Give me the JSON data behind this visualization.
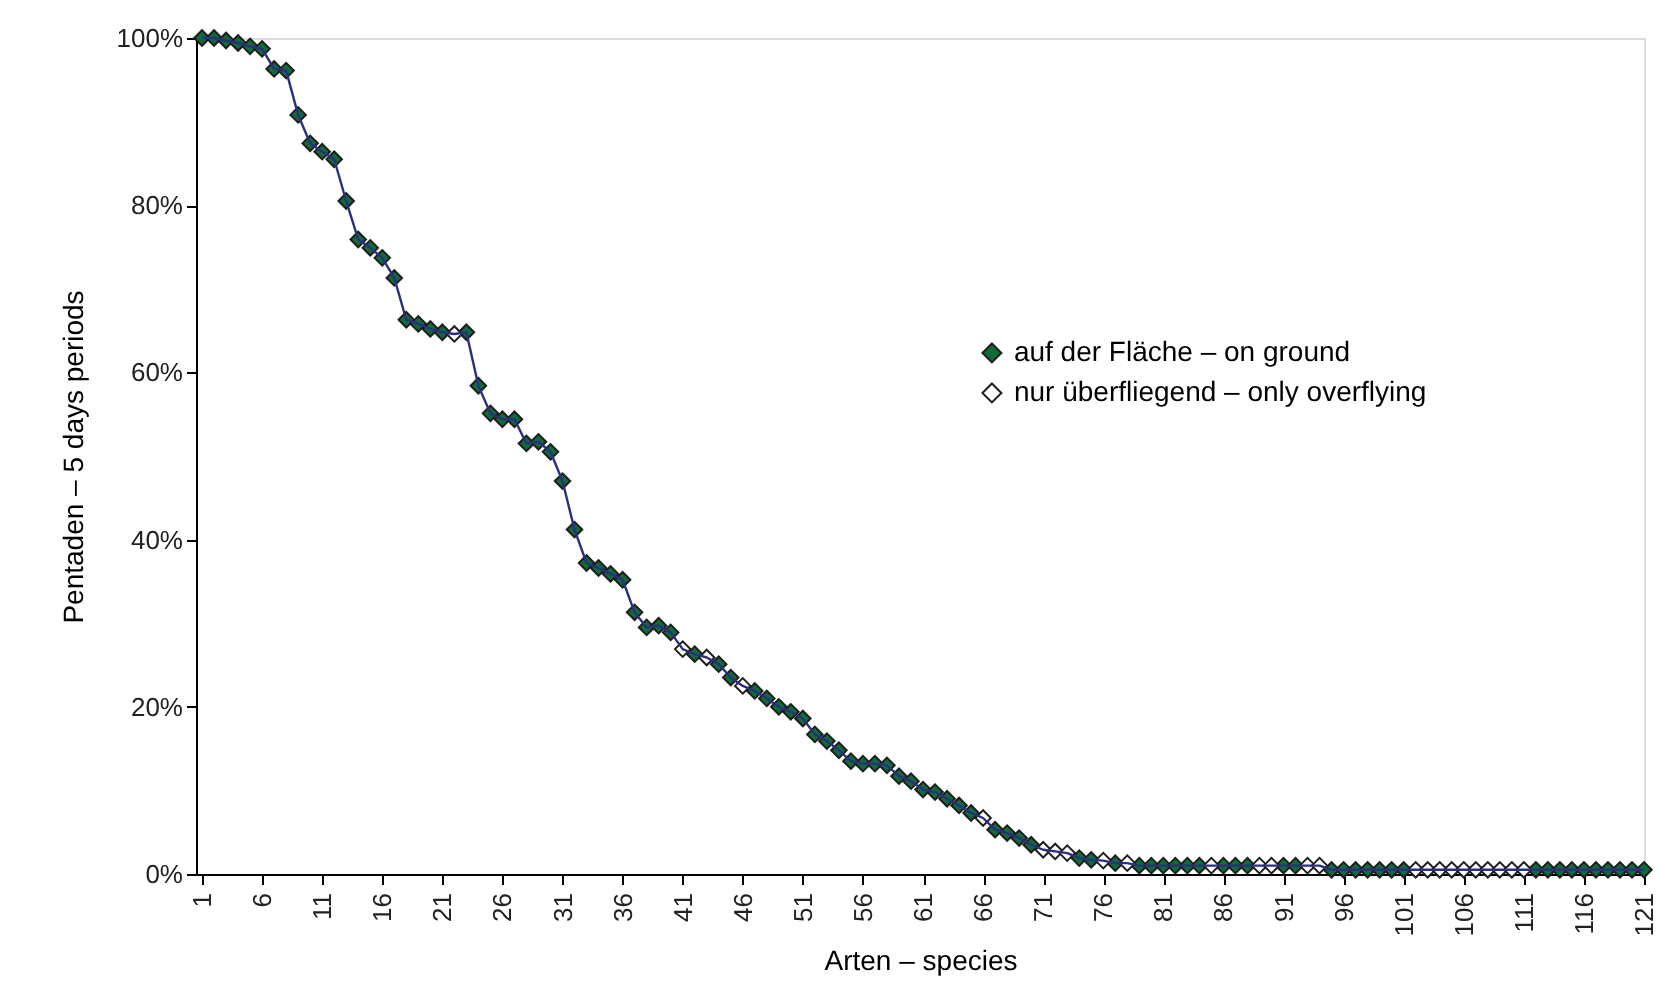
{
  "chart_data": {
    "type": "line",
    "xlabel": "Arten – species",
    "ylabel": "Pentaden – 5 days periods",
    "x": [
      1,
      2,
      3,
      4,
      5,
      6,
      7,
      8,
      9,
      10,
      11,
      12,
      13,
      14,
      15,
      16,
      17,
      18,
      19,
      20,
      21,
      22,
      23,
      24,
      25,
      26,
      27,
      28,
      29,
      30,
      31,
      32,
      33,
      34,
      35,
      36,
      37,
      38,
      39,
      40,
      41,
      42,
      43,
      44,
      45,
      46,
      47,
      48,
      49,
      50,
      51,
      52,
      53,
      54,
      55,
      56,
      57,
      58,
      59,
      60,
      61,
      62,
      63,
      64,
      65,
      66,
      67,
      68,
      69,
      70,
      71,
      72,
      73,
      74,
      75,
      76,
      77,
      78,
      79,
      80,
      81,
      82,
      83,
      84,
      85,
      86,
      87,
      88,
      89,
      90,
      91,
      92,
      93,
      94,
      95,
      96,
      97,
      98,
      99,
      100,
      101,
      102,
      103,
      104,
      105,
      106,
      107,
      108,
      109,
      110,
      111,
      112,
      113,
      114,
      115,
      116,
      117,
      118,
      119,
      120,
      121
    ],
    "xlim": [
      0.5,
      121
    ],
    "xticks": [
      1,
      6,
      11,
      16,
      21,
      26,
      31,
      36,
      41,
      46,
      51,
      56,
      61,
      66,
      71,
      76,
      81,
      86,
      91,
      96,
      101,
      106,
      111,
      116,
      121
    ],
    "ylim": [
      0,
      100
    ],
    "yticks": [
      {
        "value": 0,
        "label": "0%"
      },
      {
        "value": 20,
        "label": "20%"
      },
      {
        "value": 40,
        "label": "40%"
      },
      {
        "value": 60,
        "label": "60%"
      },
      {
        "value": 80,
        "label": "80%"
      },
      {
        "value": 100,
        "label": "100%"
      }
    ],
    "grid": false,
    "legend": "right",
    "marker": "diamond",
    "line_style": "solid",
    "series": [
      {
        "name": "auf der Fläche – on ground",
        "color": "#0f6b3a",
        "values": [
          100,
          100,
          99.7,
          99.4,
          99.0,
          98.7,
          96.3,
          96.1,
          90.8,
          87.4,
          86.4,
          85.5,
          80.5,
          75.9,
          74.9,
          73.7,
          71.3,
          66.3,
          65.8,
          65.2,
          64.8,
          null,
          64.8,
          58.4,
          55.1,
          54.4,
          54.4,
          51.5,
          51.7,
          50.5,
          47.0,
          41.2,
          37.2,
          36.6,
          35.9,
          35.2,
          31.3,
          29.5,
          29.7,
          28.9,
          null,
          26.3,
          null,
          25.1,
          23.5,
          null,
          21.9,
          21.0,
          20.0,
          19.4,
          18.6,
          16.7,
          15.9,
          14.8,
          13.5,
          13.2,
          13.2,
          13.0,
          11.7,
          11.1,
          10.1,
          9.8,
          9.0,
          8.2,
          7.3,
          null,
          5.3,
          4.9,
          4.3,
          3.5,
          null,
          null,
          null,
          1.9,
          1.7,
          null,
          1.3,
          null,
          1.0,
          1.0,
          1.0,
          1.0,
          1.0,
          1.0,
          null,
          1.0,
          1.0,
          1.0,
          null,
          null,
          1.0,
          1.0,
          null,
          null,
          0.5,
          0.5,
          0.5,
          0.5,
          0.5,
          0.5,
          0.5,
          null,
          null,
          null,
          null,
          null,
          null,
          null,
          null,
          null,
          null,
          0.5,
          0.5,
          0.5,
          0.5,
          0.5,
          0.5,
          0.5,
          0.5,
          0.5,
          0.5
        ]
      },
      {
        "name": "nur überfliegend – only overflying",
        "type": "scatter",
        "color": "#ffffff",
        "x": [
          22,
          41,
          43,
          46,
          66,
          71,
          72,
          73,
          76,
          78,
          85,
          89,
          90,
          93,
          94,
          102,
          103,
          104,
          105,
          106,
          107,
          108,
          109,
          110,
          111
        ],
        "values": [
          64.6,
          26.9,
          25.9,
          22.5,
          6.7,
          2.9,
          2.7,
          2.5,
          1.6,
          1.3,
          1.0,
          1.0,
          1.0,
          1.0,
          1.0,
          0.5,
          0.5,
          0.5,
          0.5,
          0.5,
          0.5,
          0.5,
          0.5,
          0.5,
          0.5
        ]
      }
    ]
  }
}
